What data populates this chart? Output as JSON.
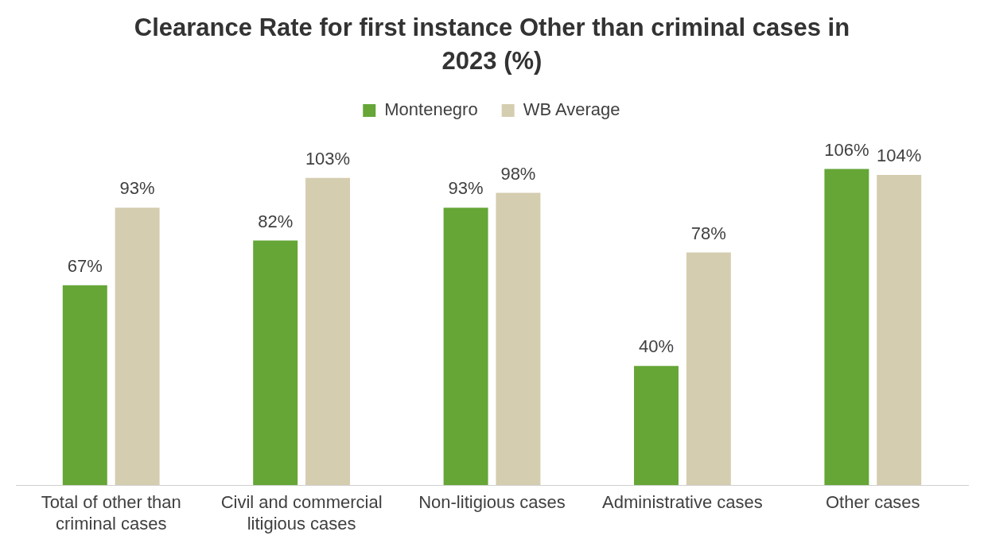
{
  "chart_data": {
    "type": "bar",
    "title": "Clearance Rate for first instance Other than criminal cases in 2023 (%)",
    "categories": [
      "Total of other than criminal cases",
      "Civil and commercial litigious cases",
      "Non-litigious cases",
      "Administrative cases",
      "Other cases"
    ],
    "series": [
      {
        "name": "Montenegro",
        "color": "#65a637",
        "values": [
          67,
          82,
          93,
          40,
          106
        ],
        "value_labels": [
          "67%",
          "82%",
          "93%",
          "40%",
          "106%"
        ]
      },
      {
        "name": "WB Average",
        "color": "#d5cdb0",
        "values": [
          93,
          103,
          98,
          78,
          104
        ],
        "value_labels": [
          "93%",
          "103%",
          "98%",
          "78%",
          "104%"
        ]
      }
    ],
    "legend": "top",
    "grid": false
  }
}
